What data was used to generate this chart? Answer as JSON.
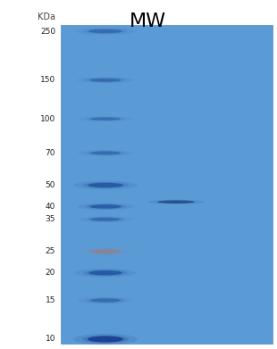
{
  "gel_bg_color": "#5b9bd5",
  "outer_bg": "#ffffff",
  "title": "MW",
  "title_fontsize": 16,
  "kda_label": "KDa",
  "kda_fontsize": 7,
  "mw_labels": [
    250,
    150,
    100,
    70,
    50,
    40,
    35,
    25,
    20,
    15,
    10
  ],
  "band_colors": {
    "250": "#2c5fa8",
    "150": "#2c5fa8",
    "100": "#2c5fa8",
    "70": "#2c5fa8",
    "50": "#2255a0",
    "40": "#2255a0",
    "35": "#2c5fa8",
    "25": "#a07878",
    "20": "#2255a0",
    "15": "#2c5fa8",
    "10": "#1a3f90"
  },
  "band_alphas": {
    "250": 0.72,
    "150": 0.72,
    "100": 0.65,
    "70": 0.7,
    "50": 0.85,
    "40": 0.78,
    "35": 0.7,
    "25": 0.6,
    "20": 0.85,
    "15": 0.72,
    "10": 0.92
  },
  "sample_band_color": "#1a3f80",
  "sample_band_alpha": 0.75,
  "log_min": 1.0,
  "log_max": 2.39794
}
